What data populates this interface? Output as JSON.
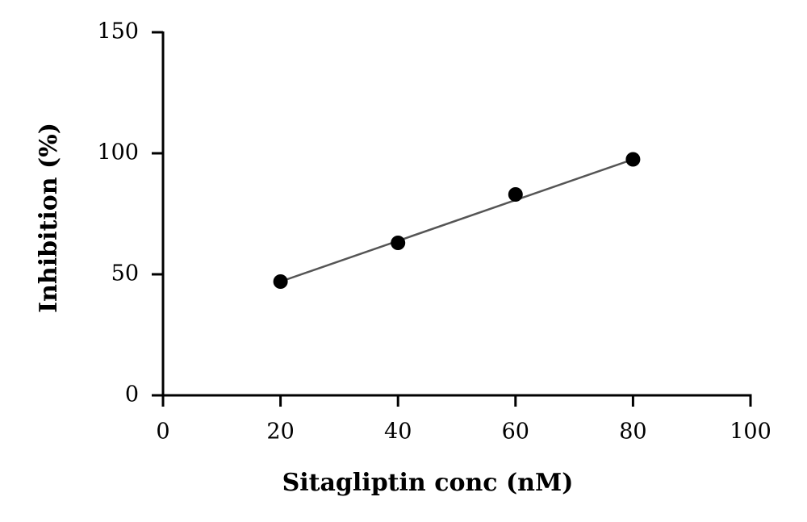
{
  "chart_data": {
    "type": "scatter",
    "x_label": "Sitagliptin conc (nM)",
    "y_label": "Inhibition (%)",
    "x": [
      20,
      40,
      60,
      80
    ],
    "series": [
      {
        "color": "#000000",
        "values": [
          47,
          63,
          83,
          97.5
        ]
      }
    ],
    "fit": {
      "x": [
        20,
        80
      ],
      "values": [
        47,
        97.5
      ],
      "color": "#555555"
    },
    "xlim": [
      0,
      100
    ],
    "xticks": [
      0,
      20,
      40,
      60,
      80,
      100
    ],
    "ylim": [
      0,
      150
    ],
    "yticks": [
      0,
      50,
      100,
      150
    ],
    "grid": false
  }
}
